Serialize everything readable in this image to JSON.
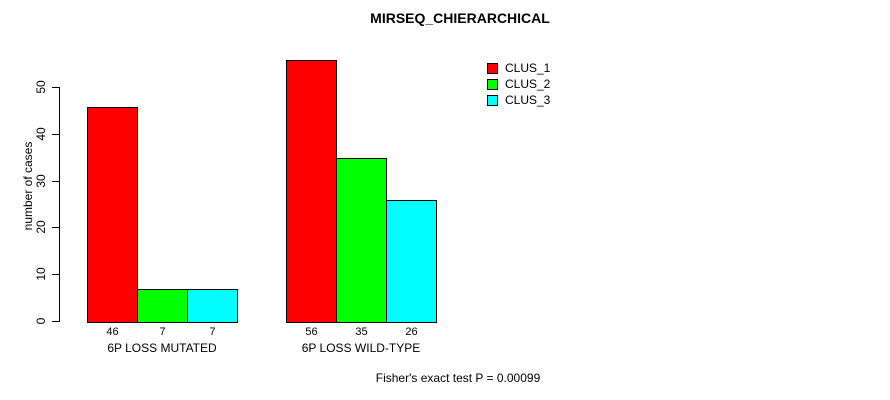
{
  "chart_data": {
    "type": "bar",
    "title": "MIRSEQ_CHIERARCHICAL",
    "ylabel": "number of cases",
    "categories": [
      "6P LOSS MUTATED",
      "6P LOSS WILD-TYPE"
    ],
    "series": [
      {
        "name": "CLUS_1",
        "color": "#ff0000",
        "values": [
          46,
          56
        ]
      },
      {
        "name": "CLUS_2",
        "color": "#00ff00",
        "values": [
          7,
          35
        ]
      },
      {
        "name": "CLUS_3",
        "color": "#00ffff",
        "values": [
          7,
          26
        ]
      }
    ],
    "yticks": [
      0,
      10,
      20,
      30,
      40,
      50
    ],
    "ylim": [
      0,
      58
    ],
    "grid": false,
    "bar_borders": "#000000",
    "bar_value_labels": [
      [
        "46",
        "7",
        "7"
      ],
      [
        "56",
        "35",
        "26"
      ]
    ],
    "legend_position": "top-right",
    "legend_entries": [
      "CLUS_1",
      "CLUS_2",
      "CLUS_3"
    ],
    "annotation": "Fisher's exact test P = 0.00099",
    "background": "#ffffff",
    "text_color": "#000000"
  }
}
